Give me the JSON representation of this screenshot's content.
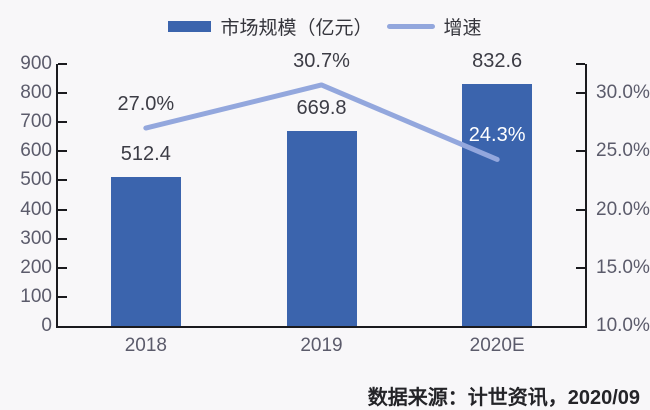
{
  "legend": {
    "items": [
      {
        "label": "市场规模（亿元）",
        "swatch": "bar"
      },
      {
        "label": "增速",
        "swatch": "line"
      }
    ]
  },
  "chart_data": {
    "type": "bar+line combo",
    "categories": [
      "2018",
      "2019",
      "2020E"
    ],
    "series": [
      {
        "name": "市场规模（亿元）",
        "type": "bar",
        "axis": "left",
        "values": [
          512.4,
          669.8,
          832.6
        ],
        "labels": [
          "512.4",
          "669.8",
          "832.6"
        ]
      },
      {
        "name": "增速",
        "type": "line",
        "axis": "right",
        "values": [
          27.0,
          30.7,
          24.3
        ],
        "labels": [
          "27.0%",
          "30.7%",
          "24.3%"
        ],
        "label_colors": [
          "#3c3c45",
          "#3c3c45",
          "#ffffff"
        ]
      }
    ],
    "left_axis": {
      "min": 0,
      "max": 900,
      "step": 100,
      "tick_labels": [
        "0",
        "100",
        "200",
        "300",
        "400",
        "500",
        "600",
        "700",
        "800",
        "900"
      ]
    },
    "right_axis": {
      "min": 10,
      "max": 32.5,
      "ticks": [
        {
          "value": 10,
          "label": "10.0%"
        },
        {
          "value": 15,
          "label": "15.0%"
        },
        {
          "value": 20,
          "label": "20.0%"
        },
        {
          "value": 25,
          "label": "25.0%"
        },
        {
          "value": 30,
          "label": "30.0%"
        }
      ],
      "end_tick_value": 32.5
    },
    "grid": false,
    "legend_position": "top"
  },
  "colors": {
    "bar": "#3b64ad",
    "line": "#93a7dd",
    "axis": "#1a1a1e",
    "tick_text": "#5b5b6b",
    "data_label": "#3c3c45",
    "background": "#f8f7f9"
  },
  "source_note": "数据来源：计世资讯，2020/09"
}
